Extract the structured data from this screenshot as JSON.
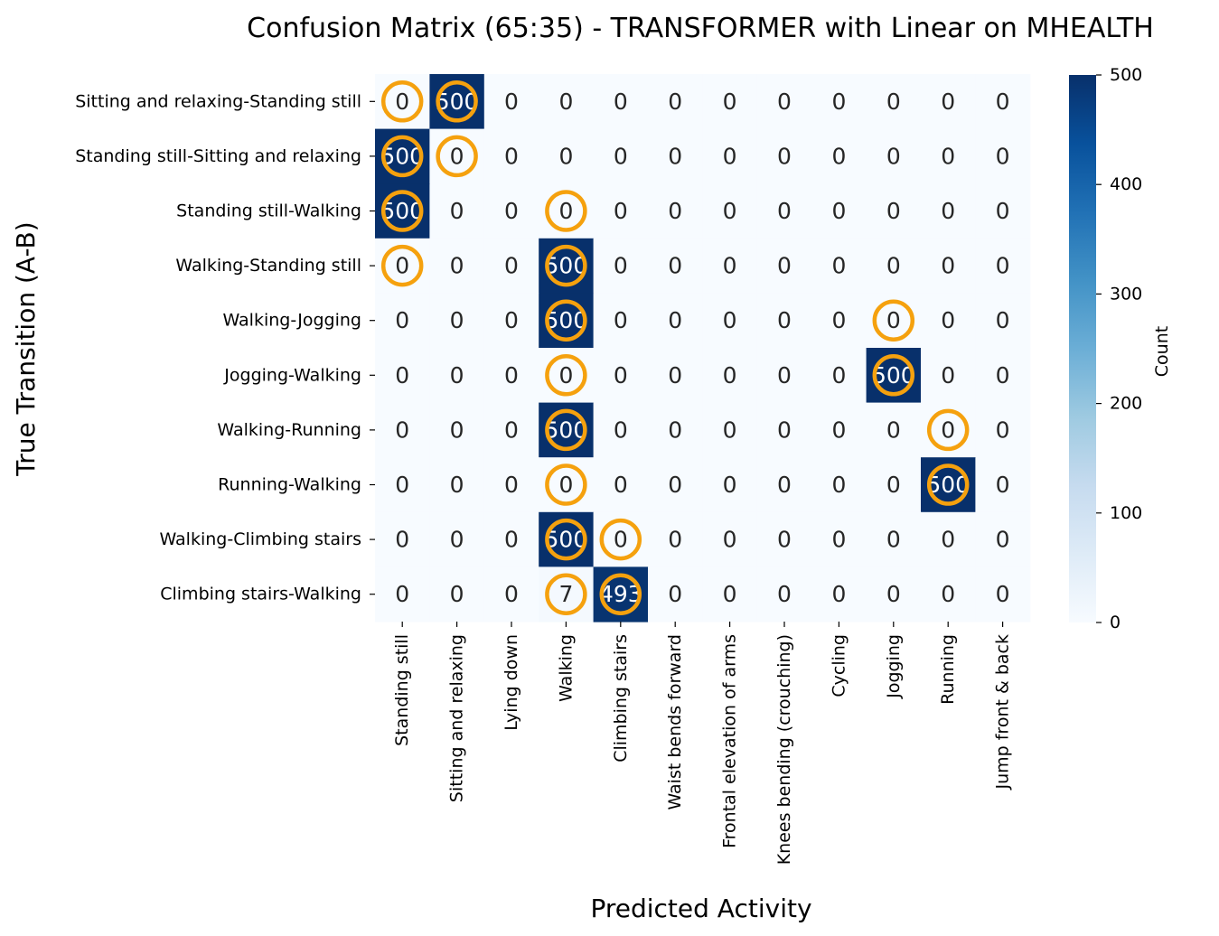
{
  "chart_data": {
    "type": "heatmap",
    "title": "Confusion Matrix (65:35) - TRANSFORMER with Linear on MHEALTH",
    "xlabel": "Predicted Activity",
    "ylabel": "True Transition (A-B)",
    "colorbar_label": "Count",
    "colorbar_ticks": [
      0,
      100,
      200,
      300,
      400,
      500
    ],
    "vmin": 0,
    "vmax": 500,
    "colormap": "Blues",
    "highlight_color": "#f5a10e",
    "rows": [
      "Sitting and relaxing-Standing still",
      "Standing still-Sitting and relaxing",
      "Standing still-Walking",
      "Walking-Standing still",
      "Walking-Jogging",
      "Jogging-Walking",
      "Walking-Running",
      "Running-Walking",
      "Walking-Climbing stairs",
      "Climbing stairs-Walking"
    ],
    "columns": [
      "Standing still",
      "Sitting and relaxing",
      "Lying down",
      "Walking",
      "Climbing stairs",
      "Waist bends forward",
      "Frontal elevation of arms",
      "Knees bending (crouching)",
      "Cycling",
      "Jogging",
      "Running",
      "Jump front & back"
    ],
    "values": [
      [
        0,
        500,
        0,
        0,
        0,
        0,
        0,
        0,
        0,
        0,
        0,
        0
      ],
      [
        500,
        0,
        0,
        0,
        0,
        0,
        0,
        0,
        0,
        0,
        0,
        0
      ],
      [
        500,
        0,
        0,
        0,
        0,
        0,
        0,
        0,
        0,
        0,
        0,
        0
      ],
      [
        0,
        0,
        0,
        500,
        0,
        0,
        0,
        0,
        0,
        0,
        0,
        0
      ],
      [
        0,
        0,
        0,
        500,
        0,
        0,
        0,
        0,
        0,
        0,
        0,
        0
      ],
      [
        0,
        0,
        0,
        0,
        0,
        0,
        0,
        0,
        0,
        500,
        0,
        0
      ],
      [
        0,
        0,
        0,
        500,
        0,
        0,
        0,
        0,
        0,
        0,
        0,
        0
      ],
      [
        0,
        0,
        0,
        0,
        0,
        0,
        0,
        0,
        0,
        0,
        500,
        0
      ],
      [
        0,
        0,
        0,
        500,
        0,
        0,
        0,
        0,
        0,
        0,
        0,
        0
      ],
      [
        0,
        0,
        0,
        7,
        493,
        0,
        0,
        0,
        0,
        0,
        0,
        0
      ]
    ],
    "highlighted_cells": [
      [
        [
          0,
          0
        ],
        [
          0,
          1
        ]
      ],
      [
        [
          1,
          0
        ],
        [
          1,
          1
        ]
      ],
      [
        [
          2,
          0
        ],
        [
          2,
          3
        ]
      ],
      [
        [
          3,
          0
        ],
        [
          3,
          3
        ]
      ],
      [
        [
          4,
          3
        ],
        [
          4,
          9
        ]
      ],
      [
        [
          5,
          9
        ],
        [
          5,
          3
        ]
      ],
      [
        [
          6,
          3
        ],
        [
          6,
          10
        ]
      ],
      [
        [
          7,
          10
        ],
        [
          7,
          3
        ]
      ],
      [
        [
          8,
          3
        ],
        [
          8,
          4
        ]
      ],
      [
        [
          9,
          3
        ],
        [
          9,
          4
        ]
      ]
    ]
  }
}
